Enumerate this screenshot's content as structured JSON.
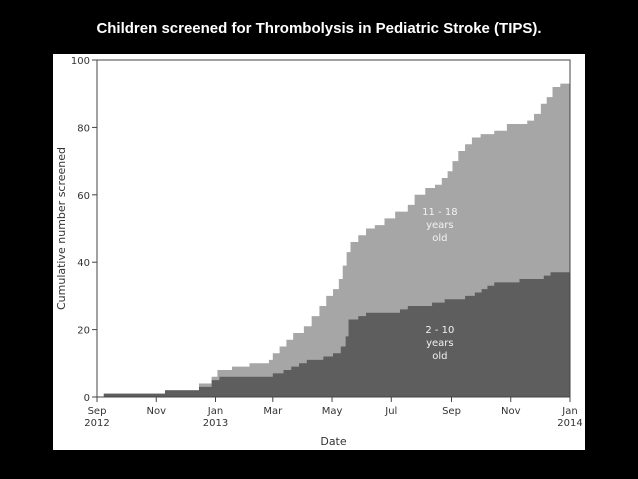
{
  "slide_title": "Children screened for Thrombolysis in Pediatric Stroke (TIPS).",
  "chart_data": {
    "type": "area",
    "stacked": true,
    "xlabel": "Date",
    "ylabel": "Cumulative number screened",
    "xlim": [
      "2012-09-01",
      "2014-01-01"
    ],
    "ylim": [
      0,
      100
    ],
    "yticks": [
      0,
      20,
      40,
      60,
      80,
      100
    ],
    "xticks": [
      {
        "date": "2012-09-01",
        "label1": "Sep",
        "label2": "2012"
      },
      {
        "date": "2012-11-01",
        "label1": "Nov",
        "label2": ""
      },
      {
        "date": "2013-01-01",
        "label1": "Jan",
        "label2": "2013"
      },
      {
        "date": "2013-03-01",
        "label1": "Mar",
        "label2": ""
      },
      {
        "date": "2013-05-01",
        "label1": "May",
        "label2": ""
      },
      {
        "date": "2013-07-01",
        "label1": "Jul",
        "label2": ""
      },
      {
        "date": "2013-09-01",
        "label1": "Sep",
        "label2": ""
      },
      {
        "date": "2013-11-01",
        "label1": "Nov",
        "label2": ""
      },
      {
        "date": "2014-01-01",
        "label1": "Jan",
        "label2": "2014"
      }
    ],
    "colors": {
      "lower": "#5e5e5e",
      "upper": "#a6a6a6",
      "axis": "#444444"
    },
    "series": [
      {
        "name": "2 - 10 years old",
        "label_lines": [
          "2 - 10",
          "years",
          "old"
        ],
        "points": [
          [
            "2012-09-08",
            0
          ],
          [
            "2012-09-08",
            1
          ],
          [
            "2012-11-10",
            1
          ],
          [
            "2012-11-10",
            2
          ],
          [
            "2012-12-15",
            2
          ],
          [
            "2012-12-15",
            3
          ],
          [
            "2012-12-28",
            3
          ],
          [
            "2012-12-28",
            5
          ],
          [
            "2013-01-05",
            5
          ],
          [
            "2013-01-05",
            6
          ],
          [
            "2013-03-01",
            6
          ],
          [
            "2013-03-01",
            7
          ],
          [
            "2013-03-12",
            7
          ],
          [
            "2013-03-12",
            8
          ],
          [
            "2013-03-20",
            8
          ],
          [
            "2013-03-20",
            9
          ],
          [
            "2013-03-28",
            9
          ],
          [
            "2013-03-28",
            10
          ],
          [
            "2013-04-05",
            10
          ],
          [
            "2013-04-05",
            11
          ],
          [
            "2013-04-22",
            11
          ],
          [
            "2013-04-22",
            12
          ],
          [
            "2013-05-02",
            12
          ],
          [
            "2013-05-02",
            13
          ],
          [
            "2013-05-10",
            13
          ],
          [
            "2013-05-10",
            15
          ],
          [
            "2013-05-15",
            15
          ],
          [
            "2013-05-15",
            18
          ],
          [
            "2013-05-18",
            18
          ],
          [
            "2013-05-18",
            23
          ],
          [
            "2013-05-28",
            23
          ],
          [
            "2013-05-28",
            24
          ],
          [
            "2013-06-05",
            24
          ],
          [
            "2013-06-05",
            25
          ],
          [
            "2013-07-10",
            25
          ],
          [
            "2013-07-10",
            26
          ],
          [
            "2013-07-18",
            26
          ],
          [
            "2013-07-18",
            27
          ],
          [
            "2013-08-12",
            27
          ],
          [
            "2013-08-12",
            28
          ],
          [
            "2013-08-25",
            28
          ],
          [
            "2013-08-25",
            29
          ],
          [
            "2013-09-15",
            29
          ],
          [
            "2013-09-15",
            30
          ],
          [
            "2013-09-25",
            30
          ],
          [
            "2013-09-25",
            31
          ],
          [
            "2013-10-02",
            31
          ],
          [
            "2013-10-02",
            32
          ],
          [
            "2013-10-08",
            32
          ],
          [
            "2013-10-08",
            33
          ],
          [
            "2013-10-15",
            33
          ],
          [
            "2013-10-15",
            34
          ],
          [
            "2013-11-10",
            34
          ],
          [
            "2013-11-10",
            35
          ],
          [
            "2013-12-05",
            35
          ],
          [
            "2013-12-05",
            36
          ],
          [
            "2013-12-12",
            36
          ],
          [
            "2013-12-12",
            37
          ],
          [
            "2014-01-01",
            37
          ]
        ]
      },
      {
        "name": "11 - 18 years old",
        "label_lines": [
          "11 - 18",
          "years",
          "old"
        ],
        "cumulative_total_points": [
          [
            "2012-09-08",
            0
          ],
          [
            "2012-09-08",
            1
          ],
          [
            "2012-11-10",
            1
          ],
          [
            "2012-11-10",
            2
          ],
          [
            "2012-12-15",
            2
          ],
          [
            "2012-12-15",
            4
          ],
          [
            "2012-12-28",
            4
          ],
          [
            "2012-12-28",
            6
          ],
          [
            "2013-01-03",
            6
          ],
          [
            "2013-01-03",
            8
          ],
          [
            "2013-01-18",
            8
          ],
          [
            "2013-01-18",
            9
          ],
          [
            "2013-02-05",
            9
          ],
          [
            "2013-02-05",
            10
          ],
          [
            "2013-02-25",
            10
          ],
          [
            "2013-02-25",
            11
          ],
          [
            "2013-03-01",
            11
          ],
          [
            "2013-03-01",
            13
          ],
          [
            "2013-03-08",
            13
          ],
          [
            "2013-03-08",
            15
          ],
          [
            "2013-03-15",
            15
          ],
          [
            "2013-03-15",
            17
          ],
          [
            "2013-03-22",
            17
          ],
          [
            "2013-03-22",
            19
          ],
          [
            "2013-04-02",
            19
          ],
          [
            "2013-04-02",
            21
          ],
          [
            "2013-04-10",
            21
          ],
          [
            "2013-04-10",
            24
          ],
          [
            "2013-04-18",
            24
          ],
          [
            "2013-04-18",
            27
          ],
          [
            "2013-04-25",
            27
          ],
          [
            "2013-04-25",
            30
          ],
          [
            "2013-05-02",
            30
          ],
          [
            "2013-05-02",
            32
          ],
          [
            "2013-05-08",
            32
          ],
          [
            "2013-05-08",
            35
          ],
          [
            "2013-05-12",
            35
          ],
          [
            "2013-05-12",
            39
          ],
          [
            "2013-05-16",
            39
          ],
          [
            "2013-05-16",
            43
          ],
          [
            "2013-05-20",
            43
          ],
          [
            "2013-05-20",
            46
          ],
          [
            "2013-05-28",
            46
          ],
          [
            "2013-05-28",
            48
          ],
          [
            "2013-06-05",
            48
          ],
          [
            "2013-06-05",
            50
          ],
          [
            "2013-06-14",
            50
          ],
          [
            "2013-06-14",
            51
          ],
          [
            "2013-06-24",
            51
          ],
          [
            "2013-06-24",
            53
          ],
          [
            "2013-07-05",
            53
          ],
          [
            "2013-07-05",
            55
          ],
          [
            "2013-07-18",
            55
          ],
          [
            "2013-07-18",
            57
          ],
          [
            "2013-07-25",
            57
          ],
          [
            "2013-07-25",
            60
          ],
          [
            "2013-08-05",
            60
          ],
          [
            "2013-08-05",
            62
          ],
          [
            "2013-08-15",
            62
          ],
          [
            "2013-08-15",
            63
          ],
          [
            "2013-08-22",
            63
          ],
          [
            "2013-08-22",
            65
          ],
          [
            "2013-08-28",
            65
          ],
          [
            "2013-08-28",
            67
          ],
          [
            "2013-09-02",
            67
          ],
          [
            "2013-09-02",
            70
          ],
          [
            "2013-09-08",
            70
          ],
          [
            "2013-09-08",
            73
          ],
          [
            "2013-09-15",
            73
          ],
          [
            "2013-09-15",
            75
          ],
          [
            "2013-09-22",
            75
          ],
          [
            "2013-09-22",
            77
          ],
          [
            "2013-10-01",
            77
          ],
          [
            "2013-10-01",
            78
          ],
          [
            "2013-10-15",
            78
          ],
          [
            "2013-10-15",
            79
          ],
          [
            "2013-10-28",
            79
          ],
          [
            "2013-10-28",
            81
          ],
          [
            "2013-11-18",
            81
          ],
          [
            "2013-11-18",
            82
          ],
          [
            "2013-11-25",
            82
          ],
          [
            "2013-11-25",
            84
          ],
          [
            "2013-12-02",
            84
          ],
          [
            "2013-12-02",
            87
          ],
          [
            "2013-12-08",
            87
          ],
          [
            "2013-12-08",
            89
          ],
          [
            "2013-12-14",
            89
          ],
          [
            "2013-12-14",
            92
          ],
          [
            "2013-12-22",
            92
          ],
          [
            "2013-12-22",
            93
          ],
          [
            "2014-01-01",
            93
          ]
        ]
      }
    ]
  }
}
